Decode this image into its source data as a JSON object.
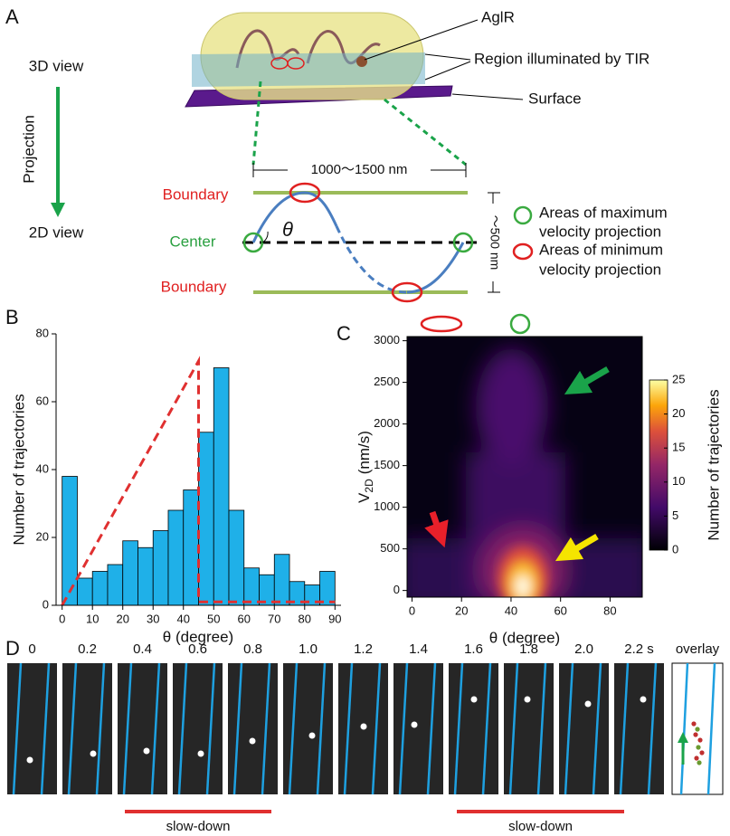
{
  "panels": [
    "A",
    "B",
    "C",
    "D"
  ],
  "diagram": {
    "aglr": "AglR",
    "view_3d": "3D view",
    "tir_region": "Region illuminated by TIR",
    "surface": "Surface",
    "projection": "Projection",
    "view_2d": "2D view",
    "width": "1000～1500 nm",
    "boundary_top": "Boundary",
    "center": "Center",
    "boundary_bottom": "Boundary",
    "theta": "θ",
    "height": "～500 nm",
    "legend": [
      [
        "Areas of maximum",
        "velocity projection"
      ],
      [
        "Areas of minimum",
        "velocity projection"
      ]
    ]
  },
  "chart_data": [
    {
      "type": "histogram",
      "ylabel": "Number of trajectories",
      "xlabel": "θ (degree)",
      "bins": [
        0,
        5,
        10,
        15,
        20,
        25,
        30,
        35,
        40,
        45,
        50,
        55,
        60,
        65,
        70,
        75,
        80,
        85,
        90
      ],
      "counts": [
        38,
        8,
        10,
        12,
        19,
        17,
        22,
        28,
        34,
        51,
        70,
        28,
        11,
        9,
        15,
        7,
        6,
        10
      ],
      "color": "#1fb0e8",
      "xlim": [
        -2,
        92
      ],
      "ylim": [
        0,
        80
      ],
      "xticks": [
        0,
        10,
        20,
        30,
        40,
        50,
        60,
        70,
        80,
        90
      ],
      "yticks": [
        0,
        20,
        40,
        60,
        80
      ],
      "series": [
        {
          "x": [
            0,
            45,
            45,
            90
          ],
          "values": [
            0,
            72,
            1,
            1
          ],
          "color": "#e03030"
        }
      ]
    },
    {
      "type": "heatmap",
      "xlabel": "θ (degree)",
      "ylabel": {
        "base": "V",
        "sub": "2D",
        "unit": "(nm/s)"
      },
      "xlim": [
        -2,
        93
      ],
      "ylim": [
        -80,
        3050
      ],
      "xticks": [
        0,
        20,
        40,
        60,
        80
      ],
      "yticks": [
        0,
        500,
        1000,
        1500,
        2000,
        2500,
        3000
      ],
      "colorbar": {
        "label": "Number of trajectories",
        "clim": [
          0,
          25
        ],
        "ticks": [
          0,
          5,
          10,
          15,
          20,
          25
        ]
      }
    }
  ],
  "filmstrip": {
    "times": [
      "0",
      "0.2",
      "0.4",
      "0.6",
      "0.8",
      "1.0",
      "1.2",
      "1.4",
      "1.6",
      "1.8",
      "2.0",
      "2.2 s"
    ],
    "overlay": "overlay",
    "annotations": [
      "slow-down",
      "slow-down"
    ]
  }
}
